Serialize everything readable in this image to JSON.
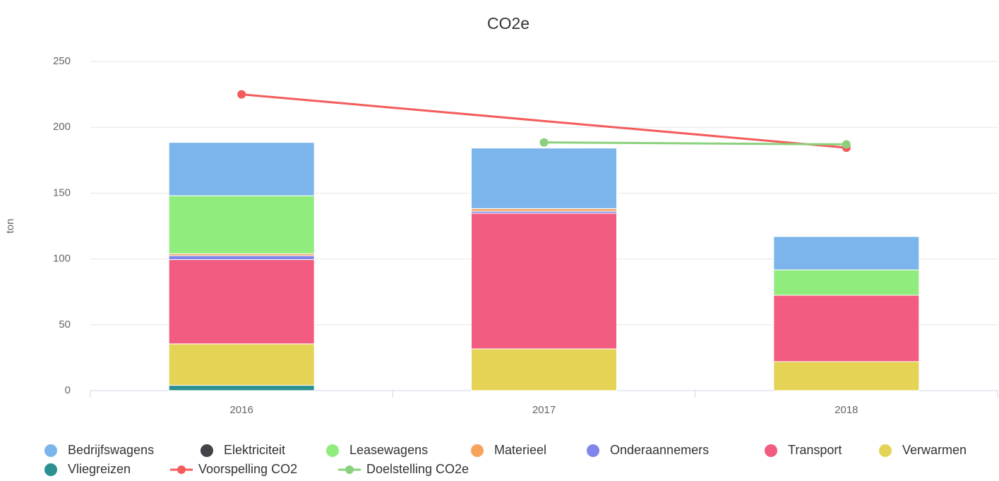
{
  "chart_data": {
    "type": "stacked-bar-line",
    "title": "CO2e",
    "y_label": "ton",
    "categories": [
      "2016",
      "2017",
      "2018"
    ],
    "ylim": [
      0,
      250
    ],
    "yticks": [
      0,
      50,
      100,
      150,
      200,
      250
    ],
    "grid": true,
    "series": [
      {
        "name": "Bedrijfswagens",
        "color": "#7cb5ec",
        "values": [
          40.5,
          46,
          25.3
        ]
      },
      {
        "name": "Elektriciteit",
        "color": "#434348",
        "values": [
          0,
          0,
          0
        ]
      },
      {
        "name": "Leasewagens",
        "color": "#90ed7d",
        "values": [
          44,
          0,
          19.3
        ]
      },
      {
        "name": "Materieel",
        "color": "#f7a35c",
        "values": [
          1.5,
          2,
          0
        ]
      },
      {
        "name": "Onderaannemers",
        "color": "#8085e9",
        "values": [
          3,
          1.5,
          0
        ]
      },
      {
        "name": "Transport",
        "color": "#f15c80",
        "values": [
          64,
          103,
          50.4
        ]
      },
      {
        "name": "Verwarmen",
        "color": "#e4d354",
        "values": [
          31.5,
          31.7,
          22
        ]
      },
      {
        "name": "Vliegreizen",
        "color": "#2b908f",
        "values": [
          4,
          0,
          0
        ]
      }
    ],
    "lines": [
      {
        "name": "Voorspelling CO2",
        "color": "#f45b5b",
        "categories": [
          "2016",
          "2018"
        ],
        "values": [
          225,
          184.5
        ]
      },
      {
        "name": "Doelstelling CO2e",
        "color": "#8bd17c",
        "categories": [
          "2017",
          "2018"
        ],
        "values": [
          188.5,
          187
        ]
      }
    ]
  }
}
